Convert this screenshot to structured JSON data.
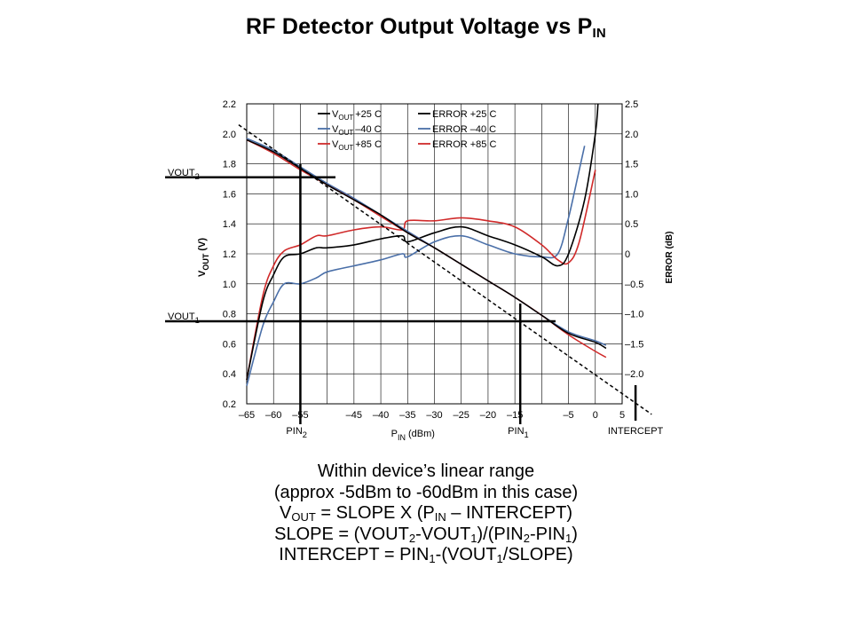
{
  "slide": {
    "title_main": "RF Detector Output Voltage vs P",
    "title_sub": "IN"
  },
  "chart_data": {
    "type": "line",
    "xlabel": "P",
    "xlabel_sub": "IN",
    "xlabel_unit": "(dBm)",
    "ylabel": "V",
    "ylabel_sub": "OUT",
    "ylabel_unit": "(V)",
    "y2label": "ERROR (dB)",
    "xlim": [
      -65,
      5
    ],
    "ylim": [
      0.2,
      2.2
    ],
    "y2lim": [
      -2.5,
      2.5
    ],
    "x_ticks": [
      {
        "v": -65,
        "t": "–65"
      },
      {
        "v": -60,
        "t": "–60"
      },
      {
        "v": -55,
        "t": "–55"
      },
      {
        "v": -45,
        "t": "–45"
      },
      {
        "v": -40,
        "t": "–40"
      },
      {
        "v": -35,
        "t": "–35"
      },
      {
        "v": -30,
        "t": "–30"
      },
      {
        "v": -25,
        "t": "–25"
      },
      {
        "v": -20,
        "t": "–20"
      },
      {
        "v": -15,
        "t": "–15"
      },
      {
        "v": -5,
        "t": "–5"
      },
      {
        "v": 0,
        "t": "0"
      },
      {
        "v": 5,
        "t": "5"
      }
    ],
    "x_grid": [
      -65,
      -60,
      -55,
      -50,
      -45,
      -40,
      -35,
      -30,
      -25,
      -20,
      -15,
      -10,
      -5,
      0,
      5
    ],
    "y_ticks": [
      {
        "v": 0.2,
        "t": "0.2"
      },
      {
        "v": 0.4,
        "t": "0.4"
      },
      {
        "v": 0.6,
        "t": "0.6"
      },
      {
        "v": 0.8,
        "t": "0.8"
      },
      {
        "v": 1.0,
        "t": "1.0"
      },
      {
        "v": 1.2,
        "t": "1.2"
      },
      {
        "v": 1.4,
        "t": "1.4"
      },
      {
        "v": 1.6,
        "t": "1.6"
      },
      {
        "v": 1.8,
        "t": "1.8"
      },
      {
        "v": 2.0,
        "t": "2.0"
      },
      {
        "v": 2.2,
        "t": "2.2"
      }
    ],
    "y2_ticks": [
      {
        "v": 2.5,
        "t": "2.5"
      },
      {
        "v": 2.0,
        "t": "2.0"
      },
      {
        "v": 1.5,
        "t": "1.5"
      },
      {
        "v": 1.0,
        "t": "1.0"
      },
      {
        "v": 0.5,
        "t": "0.5"
      },
      {
        "v": 0,
        "t": "0"
      },
      {
        "v": -0.5,
        "t": "–0.5"
      },
      {
        "v": -1.0,
        "t": "–1.0"
      },
      {
        "v": -1.5,
        "t": "–1.5"
      },
      {
        "v": -2.0,
        "t": "–2.0"
      }
    ],
    "grid": true,
    "legend": {
      "placement": "top-left",
      "entries": [
        {
          "pre": "V",
          "sub": "OUT",
          "post": "+25 C",
          "color": "#000000"
        },
        {
          "pre": "V",
          "sub": "OUT",
          "post": "–40 C",
          "color": "#4a6fa8"
        },
        {
          "pre": "V",
          "sub": "OUT",
          "post": "+85 C",
          "color": "#d02a2a"
        },
        {
          "pre": "ERROR",
          "sub": "",
          "post": "+25 C",
          "color": "#000000"
        },
        {
          "pre": "ERROR",
          "sub": "",
          "post": "–40 C",
          "color": "#4a6fa8"
        },
        {
          "pre": "ERROR",
          "sub": "",
          "post": "+85 C",
          "color": "#d02a2a"
        }
      ]
    },
    "vout_series": [
      {
        "color": "#000000",
        "axis": "left",
        "x": [
          -65,
          -60,
          -55,
          -50,
          -45,
          -40,
          -35,
          -30,
          -25,
          -20,
          -15,
          -10,
          -5,
          0,
          2
        ],
        "y": [
          1.96,
          1.88,
          1.77,
          1.66,
          1.56,
          1.46,
          1.34,
          1.24,
          1.13,
          1.02,
          0.91,
          0.79,
          0.67,
          0.61,
          0.57
        ]
      },
      {
        "color": "#4a6fa8",
        "axis": "left",
        "x": [
          -65,
          -60,
          -55,
          -50,
          -45,
          -40,
          -35,
          -30,
          -25,
          -20,
          -15,
          -10,
          -5,
          0,
          2
        ],
        "y": [
          1.97,
          1.89,
          1.78,
          1.67,
          1.57,
          1.46,
          1.35,
          1.24,
          1.13,
          1.02,
          0.91,
          0.79,
          0.68,
          0.62,
          0.59
        ]
      },
      {
        "color": "#d02a2a",
        "axis": "left",
        "x": [
          -65,
          -60,
          -55,
          -50,
          -45,
          -40,
          -35,
          -30,
          -25,
          -20,
          -15,
          -10,
          -5,
          0,
          2
        ],
        "y": [
          1.96,
          1.87,
          1.76,
          1.66,
          1.56,
          1.45,
          1.34,
          1.24,
          1.13,
          1.02,
          0.91,
          0.79,
          0.66,
          0.55,
          0.51
        ]
      }
    ],
    "error_series": [
      {
        "name": "ERROR +25 C",
        "color": "#000000",
        "axis": "right",
        "x": [
          -65,
          -62,
          -60,
          -58,
          -55,
          -52,
          -50,
          -45,
          -40,
          -36,
          -35,
          -30,
          -25,
          -20,
          -15,
          -10,
          -7,
          -5,
          -2,
          0,
          0.5
        ],
        "y": [
          -2.1,
          -0.8,
          -0.35,
          -0.05,
          0.0,
          0.1,
          0.1,
          0.15,
          0.25,
          0.3,
          0.2,
          0.35,
          0.45,
          0.3,
          0.15,
          -0.05,
          -0.2,
          0.0,
          0.9,
          2.0,
          2.5
        ]
      },
      {
        "name": "ERROR –40 C",
        "color": "#4a6fa8",
        "axis": "right",
        "x": [
          -65,
          -62,
          -60,
          -58,
          -55,
          -52,
          -50,
          -45,
          -40,
          -36,
          -35,
          -30,
          -25,
          -20,
          -15,
          -10,
          -7,
          -5,
          -3,
          -2
        ],
        "y": [
          -2.2,
          -1.2,
          -0.8,
          -0.5,
          -0.5,
          -0.4,
          -0.3,
          -0.2,
          -0.1,
          0.0,
          -0.05,
          0.2,
          0.3,
          0.15,
          0.0,
          -0.05,
          0.0,
          0.6,
          1.4,
          1.8
        ]
      },
      {
        "name": "ERROR +85 C",
        "color": "#d02a2a",
        "axis": "right",
        "x": [
          -65,
          -62,
          -60,
          -58,
          -55,
          -52,
          -50,
          -45,
          -40,
          -36,
          -35,
          -30,
          -25,
          -20,
          -15,
          -10,
          -7,
          -5,
          -3,
          0
        ],
        "y": [
          -2.1,
          -0.7,
          -0.2,
          0.05,
          0.15,
          0.3,
          0.3,
          0.4,
          0.45,
          0.4,
          0.55,
          0.55,
          0.6,
          0.55,
          0.45,
          0.15,
          -0.1,
          -0.15,
          0.2,
          1.4
        ]
      }
    ],
    "fit_line": {
      "style": "dashed",
      "x": [
        -66.5,
        10.5
      ],
      "y": [
        2.06,
        0.13
      ]
    },
    "annotations": {
      "vout2": {
        "label": "VOUT",
        "sub": "2",
        "y": 1.71
      },
      "vout1": {
        "label": "VOUT",
        "sub": "1",
        "y": 0.75
      },
      "pin2": {
        "label": "PIN",
        "sub": "2",
        "x": -55
      },
      "pin1": {
        "label": "PIN",
        "sub": "1",
        "x": -14
      },
      "intercept": {
        "label": "INTERCEPT",
        "x": 7.5
      }
    }
  },
  "caption": {
    "line1": "Within device’s linear range",
    "line2": "(approx -5dBm to -60dBm in this case)",
    "line3_a": "V",
    "line3_a_sub": "OUT",
    "line3_b": " = SLOPE X (P",
    "line3_b_sub": "IN",
    "line3_c": " – INTERCEPT)",
    "line4_a": "SLOPE = (VOUT",
    "line4_a_sub": "2",
    "line4_b": "-VOUT",
    "line4_b_sub": "1",
    "line4_c": ")/(PIN",
    "line4_c_sub": "2",
    "line4_d": "-PIN",
    "line4_d_sub": "1",
    "line4_e": ")",
    "line5_a": "INTERCEPT = PIN",
    "line5_a_sub": "1",
    "line5_b": "-(VOUT",
    "line5_b_sub": "1",
    "line5_c": "/SLOPE)"
  }
}
